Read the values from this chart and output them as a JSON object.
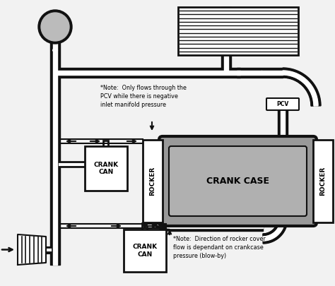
{
  "bg_color": "#f2f2f2",
  "note1": "*Note:  Only flows through the\nPCV while there is negative\ninlet manifold pressure",
  "note2": "*Note:  Direction of rocker cover\nflow is dependant on crankcase\npressure (blow-by)",
  "label_crank_case": "CRANK CASE",
  "label_rocker_left": "ROCKER",
  "label_rocker_right": "ROCKER",
  "label_crank_can_top": "CRANK\nCAN",
  "label_crank_can_bot": "CRANK\nCAN",
  "label_pcv": "PCV",
  "pipe_color": "#111111",
  "crankcase_fill": "#999999",
  "crankcase_inner_fill": "#aaaaaa",
  "box_fill": "#ffffff",
  "supercharger_fill": "#ffffff"
}
